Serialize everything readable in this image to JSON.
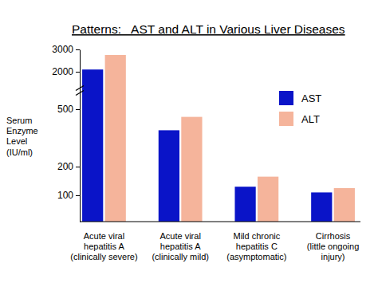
{
  "chart_data": {
    "type": "bar",
    "title": "Patterns:   AST and ALT in Various Liver Diseases",
    "y_label": "Serum\nEnzyme\nLevel\n(IU/ml)",
    "categories": [
      "Acute viral\nhepatitis A\n(clinically severe)",
      "Acute viral\nhepatitis A\n(clinically mild)",
      "Mild chronic\nhepatitis C\n(asymptomatic)",
      "Cirrhosis\n(little ongoing\ninjury)"
    ],
    "series": [
      {
        "name": "AST",
        "color": "#0a14c8",
        "values": [
          2100,
          390,
          130,
          110
        ]
      },
      {
        "name": "ALT",
        "color": "#f5b49b",
        "values": [
          2750,
          460,
          165,
          125
        ]
      }
    ],
    "ylim": [
      0,
      3000
    ],
    "yticks": [
      100,
      200,
      500,
      2000,
      3000
    ],
    "grid": false,
    "legend": "right"
  }
}
